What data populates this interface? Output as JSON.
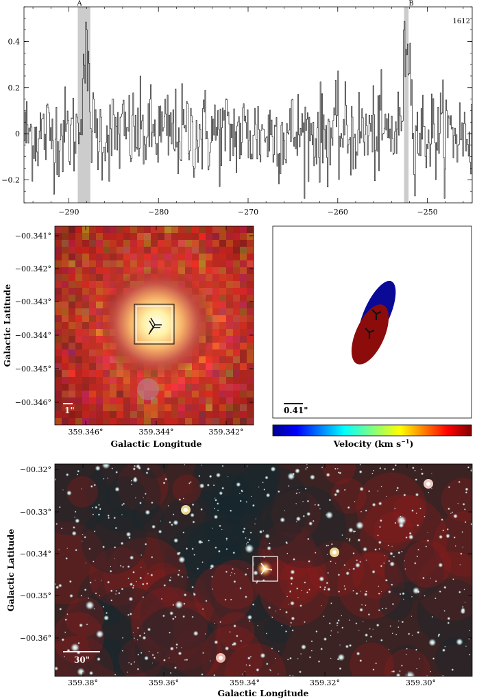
{
  "spectrum": {
    "corner_label": "1612",
    "marker_a_label": "A",
    "marker_b_label": "B"
  },
  "chart_data": [
    {
      "type": "line",
      "title": "",
      "xlabel": "",
      "ylabel": "",
      "xlim": [
        -295,
        -245
      ],
      "ylim": [
        -0.3,
        0.55
      ],
      "x_ticks": [
        -290,
        -280,
        -270,
        -260,
        -250
      ],
      "x_tick_labels": [
        "−290",
        "−280",
        "−270",
        "−260",
        "−250"
      ],
      "y_ticks": [
        -0.2,
        0,
        0.2,
        0.4
      ],
      "y_tick_labels": [
        "−0.2",
        "0",
        "0.2",
        "0.4"
      ],
      "grid": false,
      "corner_label": "1612",
      "highlight_bands": [
        {
          "label": "A",
          "x_range": [
            -289,
            -287.6
          ]
        },
        {
          "label": "B",
          "x_range": [
            -252.6,
            -252.1
          ]
        }
      ],
      "peaks": [
        {
          "label": "A",
          "x": -288.2,
          "y": 0.39
        },
        {
          "label": "B",
          "x": -252.3,
          "y": 0.49
        }
      ],
      "noise_rms": 0.1
    }
  ],
  "mid_image": {
    "x_tick_labels": [
      "359.346°",
      "359.344°",
      "359.342°"
    ],
    "y_tick_labels": [
      "−00.341°",
      "−00.342°",
      "−00.343°",
      "−00.344°",
      "−00.345°",
      "−00.346°"
    ],
    "xlabel": "Galactic Longitude",
    "ylabel": "Galactic Latitude",
    "scale_label": "1\""
  },
  "velocity_panel": {
    "scale_label": "0.41\"",
    "colorbar_label": "Velocity (km s",
    "colorbar_label_sup": "−1",
    "colorbar_label_end": ")",
    "colors": {
      "blue": "#0a0a96",
      "red": "#8c0c0c"
    }
  },
  "bottom_image": {
    "x_tick_labels": [
      "359.38°",
      "359.36°",
      "359.34°",
      "359.32°",
      "359.30°"
    ],
    "y_tick_labels": [
      "−00.32°",
      "−00.33°",
      "−00.34°",
      "−00.35°",
      "−00.36°"
    ],
    "xlabel": "Galactic Longitude",
    "ylabel": "Galactic Latitude",
    "scale_label": "30\""
  }
}
